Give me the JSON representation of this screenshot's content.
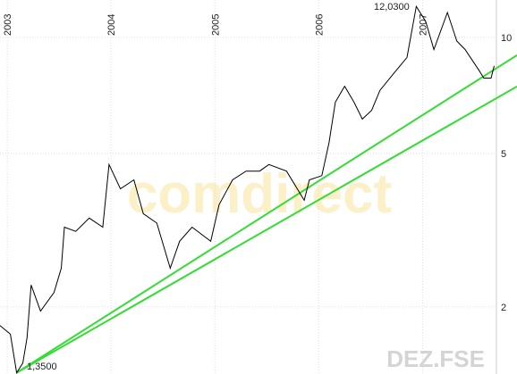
{
  "chart_data": {
    "type": "line",
    "log_scale": true,
    "grid": true,
    "x": [
      2002.93,
      2003.03,
      2003.09,
      2003.15,
      2003.19,
      2003.23,
      2003.32,
      2003.45,
      2003.52,
      2003.55,
      2003.66,
      2003.79,
      2003.92,
      2003.98,
      2004.09,
      2004.22,
      2004.31,
      2004.44,
      2004.57,
      2004.66,
      2004.78,
      2004.96,
      2005.04,
      2005.17,
      2005.3,
      2005.43,
      2005.52,
      2005.69,
      2005.86,
      2005.91,
      2006.03,
      2006.1,
      2006.16,
      2006.25,
      2006.34,
      2006.42,
      2006.51,
      2006.59,
      2006.72,
      2006.85,
      2006.94,
      2007.03,
      2007.11,
      2007.24,
      2007.33,
      2007.41,
      2007.54,
      2007.59,
      2007.66,
      2007.69
    ],
    "values": [
      1.79,
      1.7,
      1.35,
      1.43,
      1.66,
      2.28,
      1.95,
      2.18,
      2.52,
      3.22,
      3.14,
      3.4,
      3.22,
      4.68,
      4.05,
      4.27,
      3.49,
      3.3,
      2.52,
      2.96,
      3.22,
      2.96,
      3.68,
      4.27,
      4.5,
      4.5,
      4.68,
      4.5,
      3.78,
      4.27,
      4.38,
      5.34,
      6.79,
      7.47,
      6.79,
      6.14,
      6.47,
      7.29,
      8.05,
      8.87,
      12.03,
      11.0,
      9.3,
      11.6,
      9.78,
      9.3,
      8.24,
      7.84,
      7.84,
      8.44
    ],
    "color": "#000000",
    "trend_lines": [
      {
        "color": "#33dd33",
        "x": [
          2003.09,
          2007.91
        ],
        "values": [
          1.35,
          8.99
        ]
      },
      {
        "color": "#33dd33",
        "x": [
          2003.09,
          2007.91
        ],
        "values": [
          1.35,
          7.46
        ]
      }
    ],
    "xlim": [
      2002.93,
      2007.91
    ],
    "xticks": [
      2003,
      2004,
      2005,
      2006,
      2007
    ],
    "ylim": [
      1.34,
      12.5
    ],
    "yticks": [
      2,
      5,
      10
    ],
    "annotations": [
      "12,0300",
      "1,3500"
    ],
    "watermark": "comdirect",
    "symbol": "DEZ.FSE"
  }
}
